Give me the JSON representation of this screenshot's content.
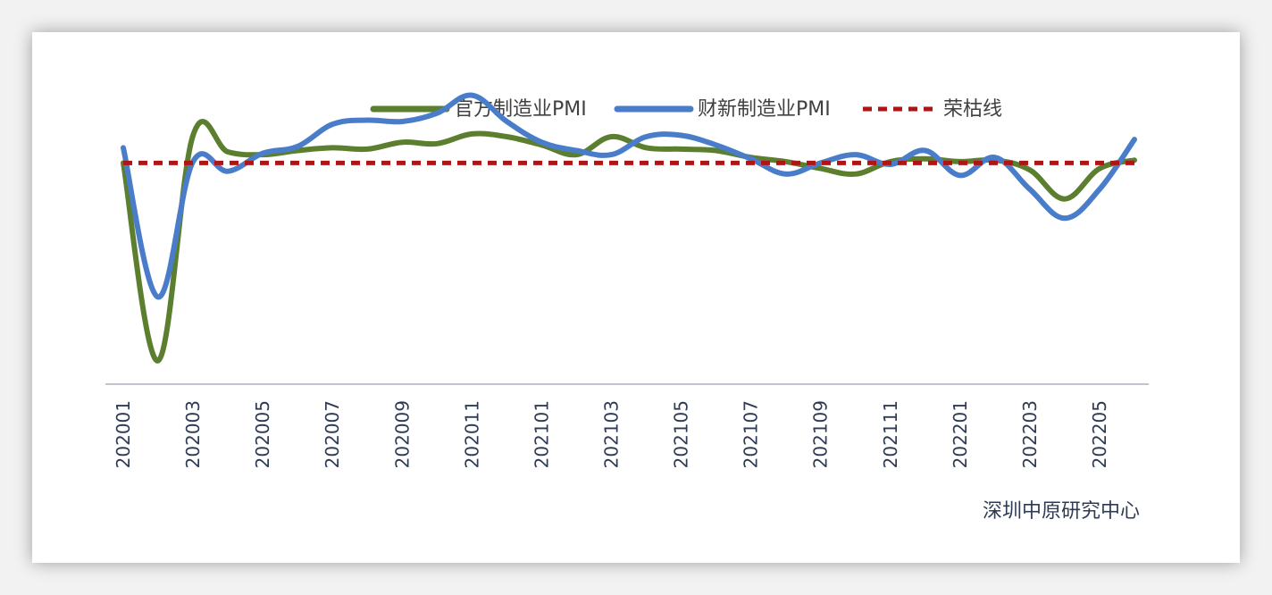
{
  "chart_data": {
    "type": "line",
    "title": "",
    "xlabel": "",
    "ylabel": "",
    "x": [
      "202001",
      "202002",
      "202003",
      "202004",
      "202005",
      "202006",
      "202007",
      "202008",
      "202009",
      "202010",
      "202011",
      "202012",
      "202101",
      "202102",
      "202103",
      "202104",
      "202105",
      "202106",
      "202107",
      "202108",
      "202109",
      "202110",
      "202111",
      "202112",
      "202201",
      "202202",
      "202203",
      "202204",
      "202205",
      "202206"
    ],
    "tick_labels": [
      "202001",
      "202003",
      "202005",
      "202007",
      "202009",
      "202011",
      "202101",
      "202103",
      "202105",
      "202107",
      "202109",
      "202111",
      "202201",
      "202203",
      "202205"
    ],
    "ylim": [
      34,
      53
    ],
    "grid": false,
    "legend_position": "top",
    "series": [
      {
        "name": "官方制造业PMI",
        "color": "#5b7f2f",
        "style": "solid",
        "values": [
          50.0,
          35.7,
          52.0,
          50.8,
          50.6,
          50.9,
          51.1,
          51.0,
          51.5,
          51.4,
          52.1,
          51.9,
          51.3,
          50.6,
          51.9,
          51.1,
          51.0,
          50.9,
          50.4,
          50.1,
          49.6,
          49.2,
          50.1,
          50.3,
          50.1,
          50.2,
          49.5,
          47.4,
          49.6,
          50.2
        ]
      },
      {
        "name": "财新制造业PMI",
        "color": "#4a7dc9",
        "style": "solid",
        "values": [
          51.1,
          40.3,
          50.1,
          49.4,
          50.7,
          51.2,
          52.8,
          53.1,
          53.0,
          53.6,
          54.9,
          53.0,
          51.5,
          50.9,
          50.6,
          51.9,
          52.0,
          51.3,
          50.3,
          49.2,
          50.0,
          50.6,
          49.9,
          50.9,
          49.1,
          50.4,
          48.1,
          46.0,
          48.1,
          51.7
        ]
      },
      {
        "name": "荣枯线",
        "color": "#b01414",
        "style": "dashed",
        "values": [
          50,
          50,
          50,
          50,
          50,
          50,
          50,
          50,
          50,
          50,
          50,
          50,
          50,
          50,
          50,
          50,
          50,
          50,
          50,
          50,
          50,
          50,
          50,
          50,
          50,
          50,
          50,
          50,
          50,
          50
        ]
      }
    ]
  },
  "source": "深圳中原研究中心"
}
